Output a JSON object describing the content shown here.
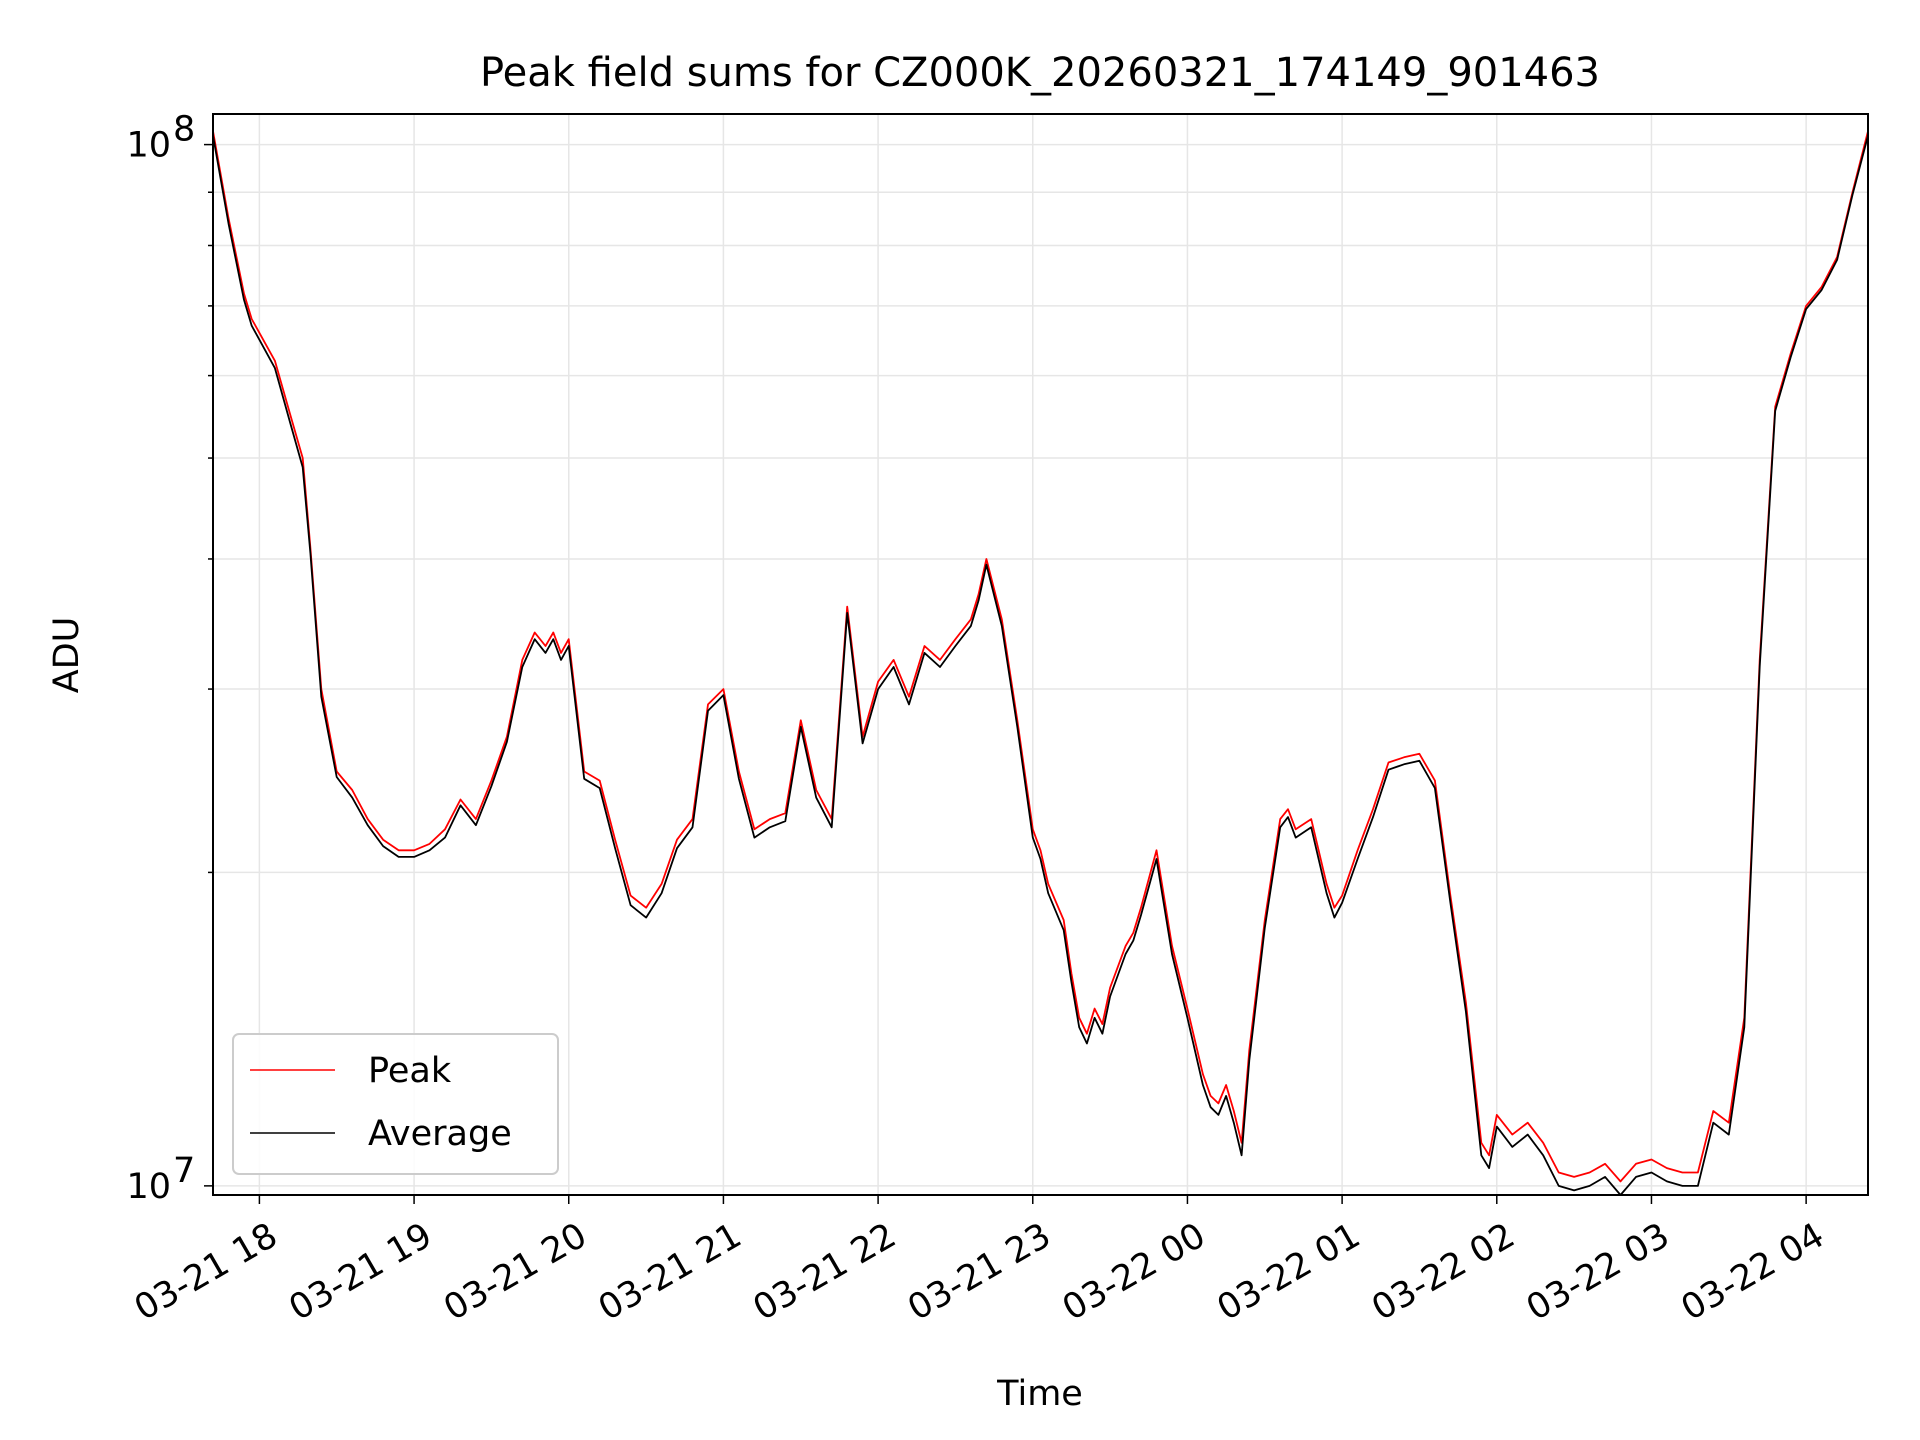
{
  "chart_data": {
    "type": "line",
    "title": "Peak field sums for CZ000K_20260321_174149_901463",
    "xlabel": "Time",
    "ylabel": "ADU",
    "yscale": "log",
    "ylim": [
      9800000,
      107000000
    ],
    "xlim_hours": [
      -0.3,
      10.4
    ],
    "grid": true,
    "legend_position": "lower-left",
    "x_tick_labels": [
      "03-21 18",
      "03-21 19",
      "03-21 20",
      "03-21 21",
      "03-21 22",
      "03-21 23",
      "03-22 00",
      "03-22 01",
      "03-22 02",
      "03-22 03",
      "03-22 04"
    ],
    "x_tick_hours": [
      0,
      1,
      2,
      3,
      4,
      5,
      6,
      7,
      8,
      9,
      10
    ],
    "y_tick_labels": [
      {
        "base": "10",
        "exp": "8",
        "value": 100000000
      },
      {
        "base": "10",
        "exp": "7",
        "value": 10000000
      }
    ],
    "series": [
      {
        "name": "Peak",
        "color": "#ff0000",
        "hours_after_1800": [
          -0.3,
          -0.2,
          -0.1,
          -0.05,
          0.1,
          0.2,
          0.28,
          0.33,
          0.4,
          0.5,
          0.6,
          0.7,
          0.8,
          0.9,
          1.0,
          1.1,
          1.2,
          1.3,
          1.4,
          1.5,
          1.6,
          1.7,
          1.78,
          1.85,
          1.9,
          1.95,
          2.0,
          2.1,
          2.2,
          2.3,
          2.4,
          2.5,
          2.6,
          2.7,
          2.8,
          2.9,
          3.0,
          3.1,
          3.2,
          3.3,
          3.4,
          3.5,
          3.6,
          3.7,
          3.8,
          3.9,
          4.0,
          4.1,
          4.2,
          4.3,
          4.4,
          4.5,
          4.6,
          4.65,
          4.7,
          4.8,
          4.9,
          5.0,
          5.05,
          5.1,
          5.2,
          5.25,
          5.3,
          5.35,
          5.4,
          5.45,
          5.5,
          5.6,
          5.65,
          5.7,
          5.8,
          5.9,
          6.0,
          6.1,
          6.15,
          6.2,
          6.25,
          6.3,
          6.35,
          6.4,
          6.5,
          6.6,
          6.65,
          6.7,
          6.8,
          6.9,
          6.95,
          7.0,
          7.1,
          7.2,
          7.3,
          7.4,
          7.5,
          7.6,
          7.7,
          7.8,
          7.9,
          7.95,
          8.0,
          8.1,
          8.2,
          8.3,
          8.4,
          8.5,
          8.6,
          8.7,
          8.8,
          8.9,
          9.0,
          9.1,
          9.2,
          9.3,
          9.4,
          9.5,
          9.6,
          9.7,
          9.8,
          9.9,
          10.0,
          10.1,
          10.2,
          10.3,
          10.4
        ],
        "values": [
          103000000,
          85000000,
          72000000,
          68000000,
          62000000,
          55000000,
          50000000,
          41000000,
          30000000,
          25000000,
          24000000,
          22500000,
          21500000,
          21000000,
          21000000,
          21300000,
          22000000,
          23500000,
          22500000,
          24500000,
          27000000,
          32000000,
          34000000,
          33000000,
          34000000,
          32500000,
          33500000,
          25000000,
          24500000,
          21500000,
          19000000,
          18500000,
          19500000,
          21500000,
          22500000,
          29000000,
          30000000,
          25000000,
          22000000,
          22500000,
          22800000,
          28000000,
          24000000,
          22500000,
          36000000,
          27000000,
          30500000,
          32000000,
          29500000,
          33000000,
          32000000,
          33500000,
          35000000,
          37000000,
          40000000,
          35000000,
          28000000,
          22000000,
          21000000,
          19500000,
          18000000,
          16000000,
          14500000,
          14000000,
          14800000,
          14300000,
          15500000,
          17000000,
          17500000,
          18500000,
          21000000,
          17000000,
          14800000,
          12800000,
          12200000,
          12000000,
          12500000,
          11800000,
          11000000,
          13500000,
          18000000,
          22500000,
          23000000,
          22000000,
          22500000,
          19500000,
          18500000,
          19000000,
          21000000,
          23000000,
          25500000,
          25800000,
          26000000,
          24500000,
          19000000,
          15000000,
          11000000,
          10700000,
          11700000,
          11200000,
          11500000,
          11000000,
          10300000,
          10200000,
          10300000,
          10500000,
          10100000,
          10500000,
          10600000,
          10400000,
          10300000,
          10300000,
          11800000,
          11500000,
          14500000,
          32000000,
          56000000,
          63000000,
          70000000,
          73000000,
          78000000,
          90000000,
          103000000
        ]
      },
      {
        "name": "Average",
        "color": "#000000",
        "hours_after_1800": [
          -0.3,
          -0.2,
          -0.1,
          -0.05,
          0.1,
          0.2,
          0.28,
          0.33,
          0.4,
          0.5,
          0.6,
          0.7,
          0.8,
          0.9,
          1.0,
          1.1,
          1.2,
          1.3,
          1.4,
          1.5,
          1.6,
          1.7,
          1.78,
          1.85,
          1.9,
          1.95,
          2.0,
          2.1,
          2.2,
          2.3,
          2.4,
          2.5,
          2.6,
          2.7,
          2.8,
          2.9,
          3.0,
          3.1,
          3.2,
          3.3,
          3.4,
          3.5,
          3.6,
          3.7,
          3.8,
          3.9,
          4.0,
          4.1,
          4.2,
          4.3,
          4.4,
          4.5,
          4.6,
          4.65,
          4.7,
          4.8,
          4.9,
          5.0,
          5.05,
          5.1,
          5.2,
          5.25,
          5.3,
          5.35,
          5.4,
          5.45,
          5.5,
          5.6,
          5.65,
          5.7,
          5.8,
          5.9,
          6.0,
          6.1,
          6.15,
          6.2,
          6.25,
          6.3,
          6.35,
          6.4,
          6.5,
          6.6,
          6.65,
          6.7,
          6.8,
          6.9,
          6.95,
          7.0,
          7.1,
          7.2,
          7.3,
          7.4,
          7.5,
          7.6,
          7.7,
          7.8,
          7.9,
          7.95,
          8.0,
          8.1,
          8.2,
          8.3,
          8.4,
          8.5,
          8.6,
          8.7,
          8.8,
          8.9,
          9.0,
          9.1,
          9.2,
          9.3,
          9.4,
          9.5,
          9.6,
          9.7,
          9.8,
          9.9,
          10.0,
          10.1,
          10.2,
          10.3,
          10.4
        ],
        "values": [
          102000000,
          84000000,
          71000000,
          67000000,
          61000000,
          54000000,
          49000000,
          40500000,
          29500000,
          24700000,
          23600000,
          22200000,
          21200000,
          20700000,
          20700000,
          21000000,
          21600000,
          23200000,
          22200000,
          24200000,
          26700000,
          31500000,
          33500000,
          32500000,
          33500000,
          32000000,
          33000000,
          24600000,
          24100000,
          21100000,
          18600000,
          18100000,
          19100000,
          21100000,
          22100000,
          28600000,
          29600000,
          24600000,
          21600000,
          22100000,
          22400000,
          27600000,
          23600000,
          22100000,
          35500000,
          26600000,
          30000000,
          31500000,
          29000000,
          32500000,
          31500000,
          33000000,
          34500000,
          36500000,
          39500000,
          34500000,
          27600000,
          21600000,
          20600000,
          19100000,
          17600000,
          15700000,
          14200000,
          13700000,
          14500000,
          14000000,
          15200000,
          16700000,
          17200000,
          18200000,
          20600000,
          16700000,
          14500000,
          12500000,
          11900000,
          11700000,
          12200000,
          11500000,
          10700000,
          13200000,
          17700000,
          22100000,
          22600000,
          21600000,
          22100000,
          19100000,
          18100000,
          18700000,
          20600000,
          22600000,
          25100000,
          25400000,
          25600000,
          24100000,
          18700000,
          14700000,
          10700000,
          10400000,
          11400000,
          10900000,
          11200000,
          10700000,
          10000000,
          9900000,
          10000000,
          10200000,
          9800000,
          10200000,
          10300000,
          10100000,
          10000000,
          10000000,
          11500000,
          11200000,
          14200000,
          31500000,
          55500000,
          62500000,
          69500000,
          72500000,
          77500000,
          89500000,
          102000000
        ]
      }
    ]
  }
}
